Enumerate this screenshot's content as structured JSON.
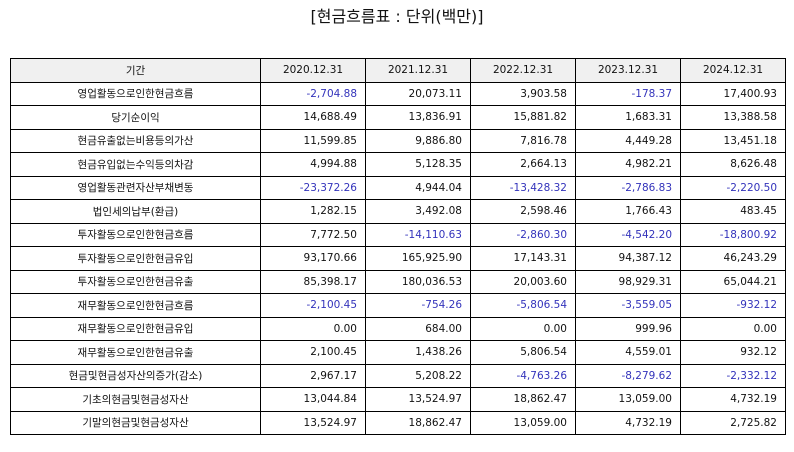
{
  "title": "[현금흐름표 : 단위(백만)]",
  "header": [
    "기간",
    "2020.12.31",
    "2021.12.31",
    "2022.12.31",
    "2023.12.31",
    "2024.12.31"
  ],
  "rows": [
    {
      "label": "영업활동으로인한현금흐름",
      "values": [
        "-2,704.88",
        "20,073.11",
        "3,903.58",
        "-178.37",
        "17,400.93"
      ]
    },
    {
      "label": "당기순이익",
      "values": [
        "14,688.49",
        "13,836.91",
        "15,881.82",
        "1,683.31",
        "13,388.58"
      ]
    },
    {
      "label": "현금유출없는비용등의가산",
      "values": [
        "11,599.85",
        "9,886.80",
        "7,816.78",
        "4,449.28",
        "13,451.18"
      ]
    },
    {
      "label": "현금유입없는수익등의차감",
      "values": [
        "4,994.88",
        "5,128.35",
        "2,664.13",
        "4,982.21",
        "8,626.48"
      ]
    },
    {
      "label": "영업활동관련자산부채변동",
      "values": [
        "-23,372.26",
        "4,944.04",
        "-13,428.32",
        "-2,786.83",
        "-2,220.50"
      ]
    },
    {
      "label": "법인세의납부(환급)",
      "values": [
        "1,282.15",
        "3,492.08",
        "2,598.46",
        "1,766.43",
        "483.45"
      ]
    },
    {
      "label": "투자활동으로인한현금흐름",
      "values": [
        "7,772.50",
        "-14,110.63",
        "-2,860.30",
        "-4,542.20",
        "-18,800.92"
      ]
    },
    {
      "label": "투자활동으로인한현금유입",
      "values": [
        "93,170.66",
        "165,925.90",
        "17,143.31",
        "94,387.12",
        "46,243.29"
      ]
    },
    {
      "label": "투자활동으로인한현금유출",
      "values": [
        "85,398.17",
        "180,036.53",
        "20,003.60",
        "98,929.31",
        "65,044.21"
      ]
    },
    {
      "label": "재무활동으로인한현금흐름",
      "values": [
        "-2,100.45",
        "-754.26",
        "-5,806.54",
        "-3,559.05",
        "-932.12"
      ]
    },
    {
      "label": "재무활동으로인한현금유입",
      "values": [
        "0.00",
        "684.00",
        "0.00",
        "999.96",
        "0.00"
      ]
    },
    {
      "label": "재무활동으로인한현금유출",
      "values": [
        "2,100.45",
        "1,438.26",
        "5,806.54",
        "4,559.01",
        "932.12"
      ]
    },
    {
      "label": "현금및현금성자산의증가(감소)",
      "values": [
        "2,967.17",
        "5,208.22",
        "-4,763.26",
        "-8,279.62",
        "-2,332.12"
      ]
    },
    {
      "label": "기초의현금및현금성자산",
      "values": [
        "13,044.84",
        "13,524.97",
        "18,862.47",
        "13,059.00",
        "4,732.19"
      ]
    },
    {
      "label": "기말의현금및현금성자산",
      "values": [
        "13,524.97",
        "18,862.47",
        "13,059.00",
        "4,732.19",
        "2,725.82"
      ]
    }
  ],
  "colors": {
    "negative": "#3333bb",
    "header_bg": "#f0f0f0"
  }
}
